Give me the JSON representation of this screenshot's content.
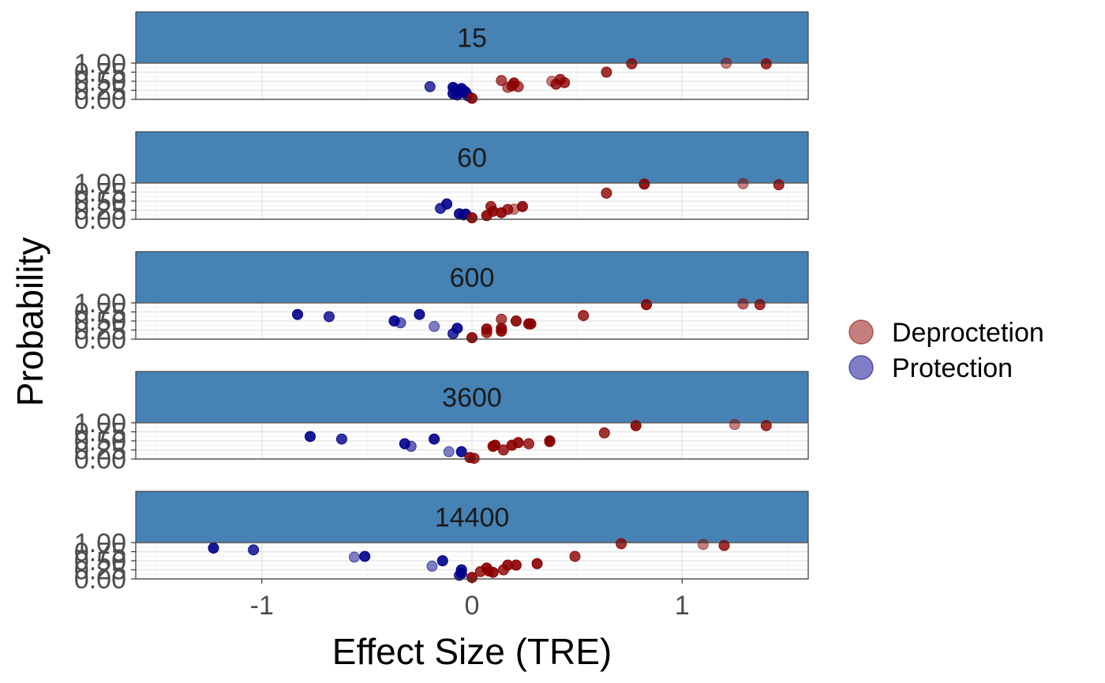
{
  "chart_data": {
    "type": "scatter",
    "xlabel": "Effect Size (TRE)",
    "ylabel": "Probability",
    "xlim": [
      -1.6,
      1.6
    ],
    "ylim": [
      0,
      1
    ],
    "x_ticks": [
      -1,
      0,
      1
    ],
    "x_tick_labels": [
      "-1",
      "0",
      "1"
    ],
    "y_ticks": [
      0,
      0.25,
      0.5,
      0.75,
      1
    ],
    "y_tick_labels": [
      "0.00",
      "0.25",
      "0.50",
      "0.75",
      "1.00"
    ],
    "grid": true,
    "legend_position": "right",
    "legend": [
      {
        "label": "Deproctetion",
        "color": "#8B0000"
      },
      {
        "label": "Protection",
        "color": "#00008B"
      }
    ],
    "strip_color": "#4682B4",
    "panels": [
      {
        "label": "15",
        "points": [
          {
            "x": -0.2,
            "y": 0.35,
            "group": "Protection",
            "alpha": 0.75
          },
          {
            "x": -0.09,
            "y": 0.33,
            "group": "Protection",
            "alpha": 0.9
          },
          {
            "x": -0.08,
            "y": 0.28,
            "group": "Protection",
            "alpha": 0.9
          },
          {
            "x": -0.07,
            "y": 0.22,
            "group": "Protection",
            "alpha": 0.9
          },
          {
            "x": -0.06,
            "y": 0.18,
            "group": "Protection",
            "alpha": 0.9
          },
          {
            "x": -0.09,
            "y": 0.16,
            "group": "Protection",
            "alpha": 0.9
          },
          {
            "x": -0.05,
            "y": 0.3,
            "group": "Protection",
            "alpha": 0.9
          },
          {
            "x": -0.04,
            "y": 0.24,
            "group": "Protection",
            "alpha": 0.9
          },
          {
            "x": -0.03,
            "y": 0.2,
            "group": "Protection",
            "alpha": 0.9
          },
          {
            "x": -0.07,
            "y": 0.12,
            "group": "Protection",
            "alpha": 0.9
          },
          {
            "x": -0.02,
            "y": 0.1,
            "group": "Protection",
            "alpha": 0.9
          },
          {
            "x": 0.0,
            "y": 0.03,
            "group": "Deproctetion",
            "alpha": 0.9
          },
          {
            "x": 0.14,
            "y": 0.52,
            "group": "Deproctetion",
            "alpha": 0.7
          },
          {
            "x": 0.17,
            "y": 0.33,
            "group": "Deproctetion",
            "alpha": 0.6
          },
          {
            "x": 0.19,
            "y": 0.37,
            "group": "Deproctetion",
            "alpha": 0.8
          },
          {
            "x": 0.2,
            "y": 0.45,
            "group": "Deproctetion",
            "alpha": 0.9
          },
          {
            "x": 0.22,
            "y": 0.35,
            "group": "Deproctetion",
            "alpha": 0.7
          },
          {
            "x": 0.38,
            "y": 0.5,
            "group": "Deproctetion",
            "alpha": 0.5
          },
          {
            "x": 0.4,
            "y": 0.42,
            "group": "Deproctetion",
            "alpha": 0.8
          },
          {
            "x": 0.42,
            "y": 0.55,
            "group": "Deproctetion",
            "alpha": 0.8
          },
          {
            "x": 0.44,
            "y": 0.46,
            "group": "Deproctetion",
            "alpha": 0.8
          },
          {
            "x": 0.64,
            "y": 0.75,
            "group": "Deproctetion",
            "alpha": 0.8
          },
          {
            "x": 0.76,
            "y": 0.98,
            "group": "Deproctetion",
            "alpha": 0.8
          },
          {
            "x": 1.21,
            "y": 1.0,
            "group": "Deproctetion",
            "alpha": 0.5
          },
          {
            "x": 1.4,
            "y": 0.98,
            "group": "Deproctetion",
            "alpha": 0.8
          }
        ]
      },
      {
        "label": "60",
        "points": [
          {
            "x": -0.15,
            "y": 0.3,
            "group": "Protection",
            "alpha": 0.8
          },
          {
            "x": -0.12,
            "y": 0.42,
            "group": "Protection",
            "alpha": 0.9
          },
          {
            "x": -0.06,
            "y": 0.15,
            "group": "Protection",
            "alpha": 0.9
          },
          {
            "x": -0.04,
            "y": 0.12,
            "group": "Protection",
            "alpha": 0.9
          },
          {
            "x": -0.03,
            "y": 0.14,
            "group": "Protection",
            "alpha": 0.9
          },
          {
            "x": 0.0,
            "y": 0.04,
            "group": "Deproctetion",
            "alpha": 0.9
          },
          {
            "x": 0.07,
            "y": 0.1,
            "group": "Deproctetion",
            "alpha": 0.9
          },
          {
            "x": 0.09,
            "y": 0.35,
            "group": "Deproctetion",
            "alpha": 0.8
          },
          {
            "x": 0.1,
            "y": 0.22,
            "group": "Deproctetion",
            "alpha": 0.9
          },
          {
            "x": 0.14,
            "y": 0.18,
            "group": "Deproctetion",
            "alpha": 0.9
          },
          {
            "x": 0.17,
            "y": 0.27,
            "group": "Deproctetion",
            "alpha": 0.8
          },
          {
            "x": 0.2,
            "y": 0.28,
            "group": "Deproctetion",
            "alpha": 0.5
          },
          {
            "x": 0.24,
            "y": 0.35,
            "group": "Deproctetion",
            "alpha": 0.9
          },
          {
            "x": 0.64,
            "y": 0.72,
            "group": "Deproctetion",
            "alpha": 0.8
          },
          {
            "x": 0.82,
            "y": 0.97,
            "group": "Deproctetion",
            "alpha": 0.9
          },
          {
            "x": 1.29,
            "y": 0.98,
            "group": "Deproctetion",
            "alpha": 0.5
          },
          {
            "x": 1.46,
            "y": 0.95,
            "group": "Deproctetion",
            "alpha": 0.8
          }
        ]
      },
      {
        "label": "600",
        "points": [
          {
            "x": -0.83,
            "y": 0.68,
            "group": "Protection",
            "alpha": 0.9
          },
          {
            "x": -0.68,
            "y": 0.62,
            "group": "Protection",
            "alpha": 0.8
          },
          {
            "x": -0.37,
            "y": 0.5,
            "group": "Protection",
            "alpha": 0.9
          },
          {
            "x": -0.34,
            "y": 0.45,
            "group": "Protection",
            "alpha": 0.6
          },
          {
            "x": -0.25,
            "y": 0.68,
            "group": "Protection",
            "alpha": 0.9
          },
          {
            "x": -0.18,
            "y": 0.35,
            "group": "Protection",
            "alpha": 0.5
          },
          {
            "x": -0.07,
            "y": 0.3,
            "group": "Protection",
            "alpha": 0.9
          },
          {
            "x": -0.09,
            "y": 0.15,
            "group": "Protection",
            "alpha": 0.8
          },
          {
            "x": 0.0,
            "y": 0.04,
            "group": "Deproctetion",
            "alpha": 0.9
          },
          {
            "x": 0.07,
            "y": 0.28,
            "group": "Deproctetion",
            "alpha": 0.9
          },
          {
            "x": 0.07,
            "y": 0.18,
            "group": "Deproctetion",
            "alpha": 0.8
          },
          {
            "x": 0.14,
            "y": 0.55,
            "group": "Deproctetion",
            "alpha": 0.7
          },
          {
            "x": 0.14,
            "y": 0.3,
            "group": "Deproctetion",
            "alpha": 0.9
          },
          {
            "x": 0.14,
            "y": 0.22,
            "group": "Deproctetion",
            "alpha": 0.9
          },
          {
            "x": 0.21,
            "y": 0.5,
            "group": "Deproctetion",
            "alpha": 0.9
          },
          {
            "x": 0.27,
            "y": 0.42,
            "group": "Deproctetion",
            "alpha": 0.9
          },
          {
            "x": 0.28,
            "y": 0.42,
            "group": "Deproctetion",
            "alpha": 0.9
          },
          {
            "x": 0.53,
            "y": 0.65,
            "group": "Deproctetion",
            "alpha": 0.8
          },
          {
            "x": 0.83,
            "y": 0.95,
            "group": "Deproctetion",
            "alpha": 0.9
          },
          {
            "x": 1.29,
            "y": 0.97,
            "group": "Deproctetion",
            "alpha": 0.6
          },
          {
            "x": 1.37,
            "y": 0.95,
            "group": "Deproctetion",
            "alpha": 0.8
          }
        ]
      },
      {
        "label": "3600",
        "points": [
          {
            "x": -0.77,
            "y": 0.62,
            "group": "Protection",
            "alpha": 0.9
          },
          {
            "x": -0.62,
            "y": 0.55,
            "group": "Protection",
            "alpha": 0.8
          },
          {
            "x": -0.32,
            "y": 0.42,
            "group": "Protection",
            "alpha": 0.9
          },
          {
            "x": -0.29,
            "y": 0.35,
            "group": "Protection",
            "alpha": 0.6
          },
          {
            "x": -0.18,
            "y": 0.55,
            "group": "Protection",
            "alpha": 0.9
          },
          {
            "x": -0.11,
            "y": 0.2,
            "group": "Protection",
            "alpha": 0.5
          },
          {
            "x": -0.05,
            "y": 0.2,
            "group": "Protection",
            "alpha": 0.9
          },
          {
            "x": -0.01,
            "y": 0.04,
            "group": "Deproctetion",
            "alpha": 0.9
          },
          {
            "x": 0.01,
            "y": 0.02,
            "group": "Deproctetion",
            "alpha": 0.8
          },
          {
            "x": 0.1,
            "y": 0.35,
            "group": "Deproctetion",
            "alpha": 0.9
          },
          {
            "x": 0.11,
            "y": 0.38,
            "group": "Deproctetion",
            "alpha": 0.9
          },
          {
            "x": 0.15,
            "y": 0.25,
            "group": "Deproctetion",
            "alpha": 0.8
          },
          {
            "x": 0.19,
            "y": 0.38,
            "group": "Deproctetion",
            "alpha": 0.9
          },
          {
            "x": 0.22,
            "y": 0.45,
            "group": "Deproctetion",
            "alpha": 0.9
          },
          {
            "x": 0.27,
            "y": 0.42,
            "group": "Deproctetion",
            "alpha": 0.8
          },
          {
            "x": 0.37,
            "y": 0.5,
            "group": "Deproctetion",
            "alpha": 0.9
          },
          {
            "x": 0.37,
            "y": 0.48,
            "group": "Deproctetion",
            "alpha": 0.9
          },
          {
            "x": 0.63,
            "y": 0.72,
            "group": "Deproctetion",
            "alpha": 0.8
          },
          {
            "x": 0.78,
            "y": 0.92,
            "group": "Deproctetion",
            "alpha": 0.9
          },
          {
            "x": 1.25,
            "y": 0.95,
            "group": "Deproctetion",
            "alpha": 0.5
          },
          {
            "x": 1.4,
            "y": 0.92,
            "group": "Deproctetion",
            "alpha": 0.8
          }
        ]
      },
      {
        "label": "14400",
        "points": [
          {
            "x": -1.23,
            "y": 0.85,
            "group": "Protection",
            "alpha": 0.9
          },
          {
            "x": -1.04,
            "y": 0.8,
            "group": "Protection",
            "alpha": 0.8
          },
          {
            "x": -0.56,
            "y": 0.6,
            "group": "Protection",
            "alpha": 0.5
          },
          {
            "x": -0.51,
            "y": 0.62,
            "group": "Protection",
            "alpha": 0.9
          },
          {
            "x": -0.14,
            "y": 0.5,
            "group": "Protection",
            "alpha": 0.9
          },
          {
            "x": -0.19,
            "y": 0.35,
            "group": "Protection",
            "alpha": 0.5
          },
          {
            "x": -0.05,
            "y": 0.25,
            "group": "Protection",
            "alpha": 0.9
          },
          {
            "x": -0.05,
            "y": 0.15,
            "group": "Protection",
            "alpha": 0.9
          },
          {
            "x": -0.06,
            "y": 0.1,
            "group": "Protection",
            "alpha": 0.8
          },
          {
            "x": 0.0,
            "y": 0.04,
            "group": "Deproctetion",
            "alpha": 0.9
          },
          {
            "x": 0.04,
            "y": 0.2,
            "group": "Deproctetion",
            "alpha": 0.8
          },
          {
            "x": 0.07,
            "y": 0.3,
            "group": "Deproctetion",
            "alpha": 0.9
          },
          {
            "x": 0.08,
            "y": 0.22,
            "group": "Deproctetion",
            "alpha": 0.9
          },
          {
            "x": 0.1,
            "y": 0.18,
            "group": "Deproctetion",
            "alpha": 0.9
          },
          {
            "x": 0.15,
            "y": 0.25,
            "group": "Deproctetion",
            "alpha": 0.8
          },
          {
            "x": 0.17,
            "y": 0.38,
            "group": "Deproctetion",
            "alpha": 0.9
          },
          {
            "x": 0.21,
            "y": 0.38,
            "group": "Deproctetion",
            "alpha": 0.9
          },
          {
            "x": 0.31,
            "y": 0.42,
            "group": "Deproctetion",
            "alpha": 0.9
          },
          {
            "x": 0.49,
            "y": 0.62,
            "group": "Deproctetion",
            "alpha": 0.8
          },
          {
            "x": 0.71,
            "y": 0.97,
            "group": "Deproctetion",
            "alpha": 0.8
          },
          {
            "x": 1.1,
            "y": 0.95,
            "group": "Deproctetion",
            "alpha": 0.5
          },
          {
            "x": 1.2,
            "y": 0.92,
            "group": "Deproctetion",
            "alpha": 0.8
          }
        ]
      }
    ]
  }
}
